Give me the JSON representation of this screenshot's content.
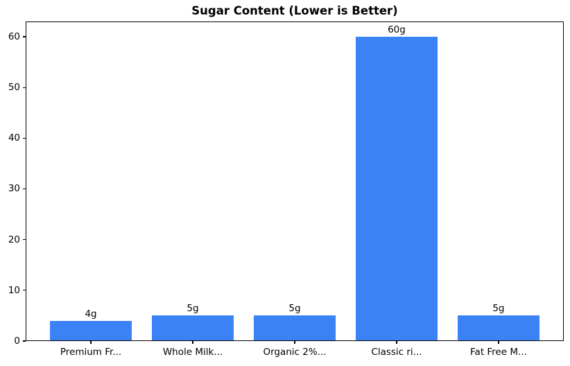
{
  "figure": {
    "title": "Sugar Content (Lower is Better)"
  },
  "chart_data": {
    "type": "bar",
    "title": "Sugar Content (Lower is Better)",
    "categories": [
      "Premium Fr...",
      "Whole Milk...",
      "Organic 2%...",
      "Classic ri...",
      "Fat Free M..."
    ],
    "values": [
      4,
      5,
      5,
      60,
      5
    ],
    "bar_labels": [
      "4g",
      "5g",
      "5g",
      "60g",
      "5g"
    ],
    "xlabel": "",
    "ylabel": "",
    "ylim": [
      0,
      63
    ],
    "yticks": [
      0,
      10,
      20,
      30,
      40,
      50,
      60
    ],
    "bar_width_fraction": 0.8,
    "grid": false,
    "legend": false,
    "colors": {
      "bar": "#3b82f6",
      "axis": "#000000",
      "text": "#000000",
      "background": "#ffffff"
    }
  }
}
